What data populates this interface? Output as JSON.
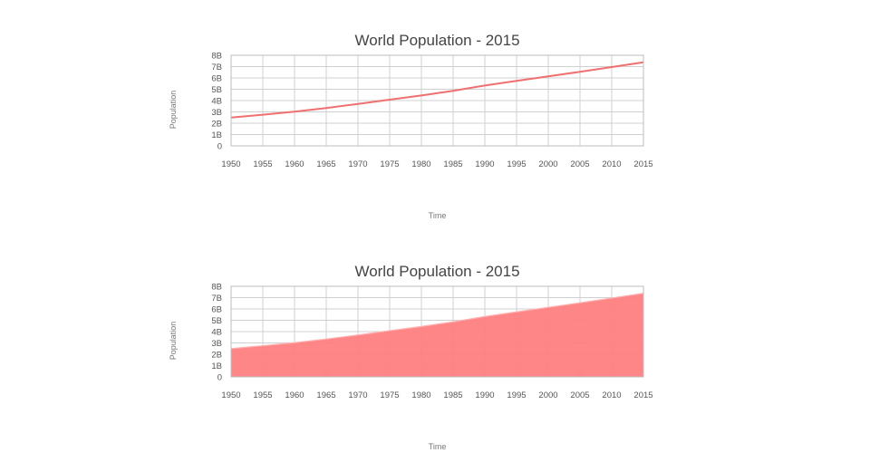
{
  "chart_data": [
    {
      "type": "line",
      "title": "World Population - 2015",
      "xlabel": "Time",
      "ylabel": "Population",
      "x": [
        1950,
        1955,
        1960,
        1965,
        1970,
        1975,
        1980,
        1985,
        1990,
        1995,
        2000,
        2005,
        2010,
        2015
      ],
      "x_tick_labels": [
        "1950",
        "1955",
        "1960",
        "1965",
        "1970",
        "1975",
        "1980",
        "1985",
        "1990",
        "1995",
        "2000",
        "2005",
        "2010",
        "2015"
      ],
      "y_tick_values": [
        0,
        1,
        2,
        3,
        4,
        5,
        6,
        7,
        8
      ],
      "y_tick_labels": [
        "0",
        "1B",
        "2B",
        "3B",
        "4B",
        "5B",
        "6B",
        "7B",
        "8B"
      ],
      "xlim": [
        1950,
        2015
      ],
      "ylim": [
        0,
        8
      ],
      "grid": true,
      "legend": "none",
      "color": "#f07070",
      "series": [
        {
          "values": [
            2.5,
            2.75,
            3.02,
            3.34,
            3.7,
            4.08,
            4.45,
            4.86,
            5.33,
            5.74,
            6.14,
            6.54,
            6.96,
            7.38
          ]
        }
      ]
    },
    {
      "type": "area",
      "title": "World Population - 2015",
      "xlabel": "Time",
      "ylabel": "Population",
      "x": [
        1950,
        1955,
        1960,
        1965,
        1970,
        1975,
        1980,
        1985,
        1990,
        1995,
        2000,
        2005,
        2010,
        2015
      ],
      "x_tick_labels": [
        "1950",
        "1955",
        "1960",
        "1965",
        "1970",
        "1975",
        "1980",
        "1985",
        "1990",
        "1995",
        "2000",
        "2005",
        "2010",
        "2015"
      ],
      "y_tick_values": [
        0,
        1,
        2,
        3,
        4,
        5,
        6,
        7,
        8
      ],
      "y_tick_labels": [
        "0",
        "1B",
        "2B",
        "3B",
        "4B",
        "5B",
        "6B",
        "7B",
        "8B"
      ],
      "xlim": [
        1950,
        2015
      ],
      "ylim": [
        0,
        8
      ],
      "grid": true,
      "legend": "none",
      "color": "#ff7f7f",
      "series": [
        {
          "values": [
            2.5,
            2.75,
            3.02,
            3.34,
            3.7,
            4.08,
            4.45,
            4.86,
            5.33,
            5.74,
            6.14,
            6.54,
            6.96,
            7.38
          ]
        }
      ]
    }
  ]
}
